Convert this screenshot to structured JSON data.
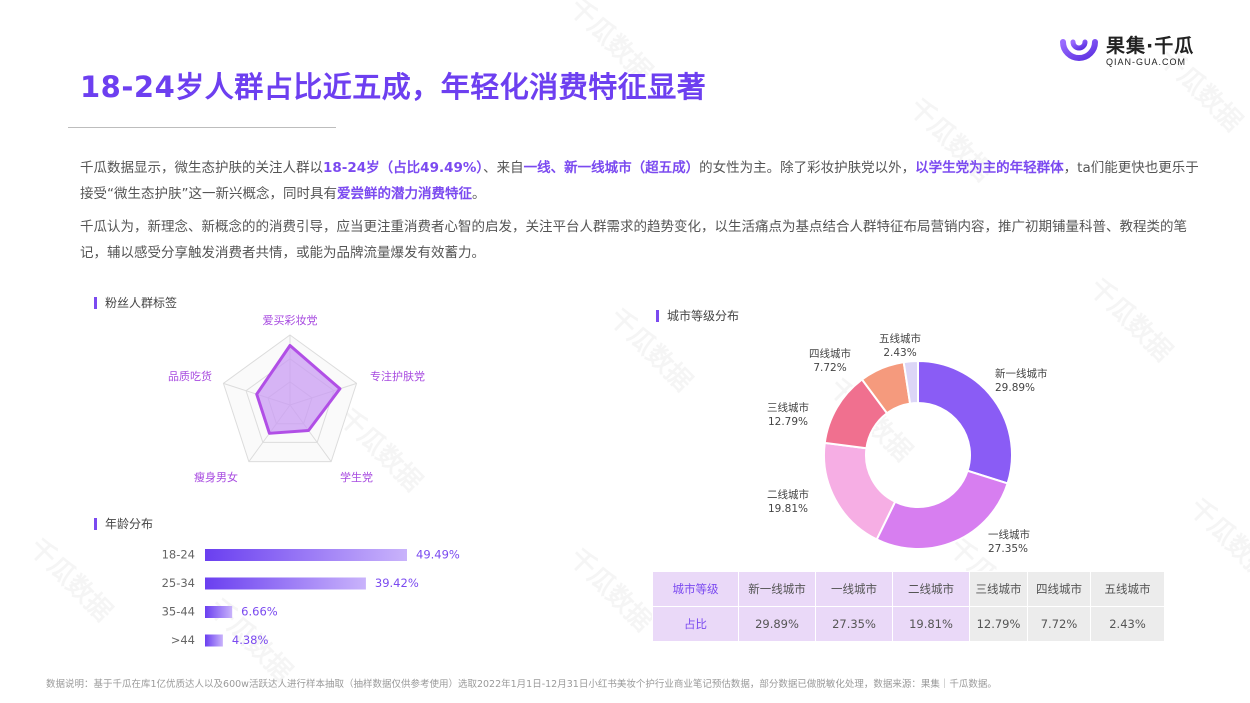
{
  "brand": {
    "name_cn": "果集·千瓜",
    "name_en": "QIAN-GUA.COM",
    "watermark": "千瓜数据"
  },
  "title": "18-24岁人群占比近五成，年轻化消费特征显著",
  "paragraph1": [
    {
      "t": "千瓜数据显示，微生态护肤的关注人群以",
      "hl": false
    },
    {
      "t": "18-24岁（占比49.49%）",
      "hl": true
    },
    {
      "t": "、来自",
      "hl": false
    },
    {
      "t": "一线、新一线城市（超五成）",
      "hl": true
    },
    {
      "t": "的女性为主。除了彩妆护肤党以外，",
      "hl": false
    },
    {
      "t": "以学生党为主的年轻群体",
      "hl": true
    },
    {
      "t": "，ta们能更快也更乐于接受“微生态护肤”这一新兴概念，同时具有",
      "hl": false
    },
    {
      "t": "爱尝鲜的潜力消费特征",
      "hl": true
    },
    {
      "t": "。",
      "hl": false
    }
  ],
  "paragraph2": "千瓜认为，新理念、新概念的的消费引导，应当更注重消费者心智的启发，关注平台人群需求的趋势变化，以生活痛点为基点结合人群特征布局营销内容，推广初期铺量科普、教程类的笔记，辅以感受分享触发消费者共情，或能为品牌流量爆发有效蓄力。",
  "sections": {
    "fans": "粉丝人群标签",
    "age": "年龄分布",
    "city": "城市等级分布"
  },
  "colors": {
    "accent": "#7b4af0",
    "title": "#6d3ff0"
  },
  "chart_data": [
    {
      "type": "radar",
      "title": "粉丝人群标签",
      "axes": [
        "爱买彩妆党",
        "专注护肤党",
        "学生党",
        "瘦身男女",
        "品质吃货"
      ],
      "values": [
        0.85,
        0.75,
        0.45,
        0.5,
        0.5
      ],
      "max": 1
    },
    {
      "type": "bar",
      "orientation": "horizontal",
      "title": "年龄分布",
      "categories": [
        "18-24",
        "25-34",
        "35-44",
        ">44"
      ],
      "values": [
        49.49,
        39.42,
        6.66,
        4.38
      ],
      "labels": [
        "49.49%",
        "39.42%",
        "6.66%",
        "4.38%"
      ]
    },
    {
      "type": "pie",
      "subtype": "donut",
      "title": "城市等级分布",
      "categories": [
        "新一线城市",
        "一线城市",
        "二线城市",
        "三线城市",
        "四线城市",
        "五线城市"
      ],
      "values": [
        29.89,
        27.35,
        19.81,
        12.79,
        7.72,
        2.43
      ],
      "labels": [
        "29.89%",
        "27.35%",
        "19.81%",
        "12.79%",
        "7.72%",
        "2.43%"
      ],
      "colors": [
        "#8a5cf5",
        "#d77ef0",
        "#f6aee4",
        "#f0708f",
        "#f59a7d",
        "#dcd6f7"
      ]
    },
    {
      "type": "table",
      "header_row": [
        "城市等级",
        "新一线城市",
        "一线城市",
        "二线城市",
        "三线城市",
        "四线城市",
        "五线城市"
      ],
      "value_row": [
        "占比",
        "29.89%",
        "27.35%",
        "19.81%",
        "12.79%",
        "7.72%",
        "2.43%"
      ]
    }
  ],
  "footer": "数据说明：基于千瓜在库1亿优质达人以及600w活跃达人进行样本抽取（抽样数据仅供参考使用）选取2022年1月1日-12月31日小红书美妆个护行业商业笔记预估数据，部分数据已做脱敏化处理，数据来源：果集｜千瓜数据。"
}
